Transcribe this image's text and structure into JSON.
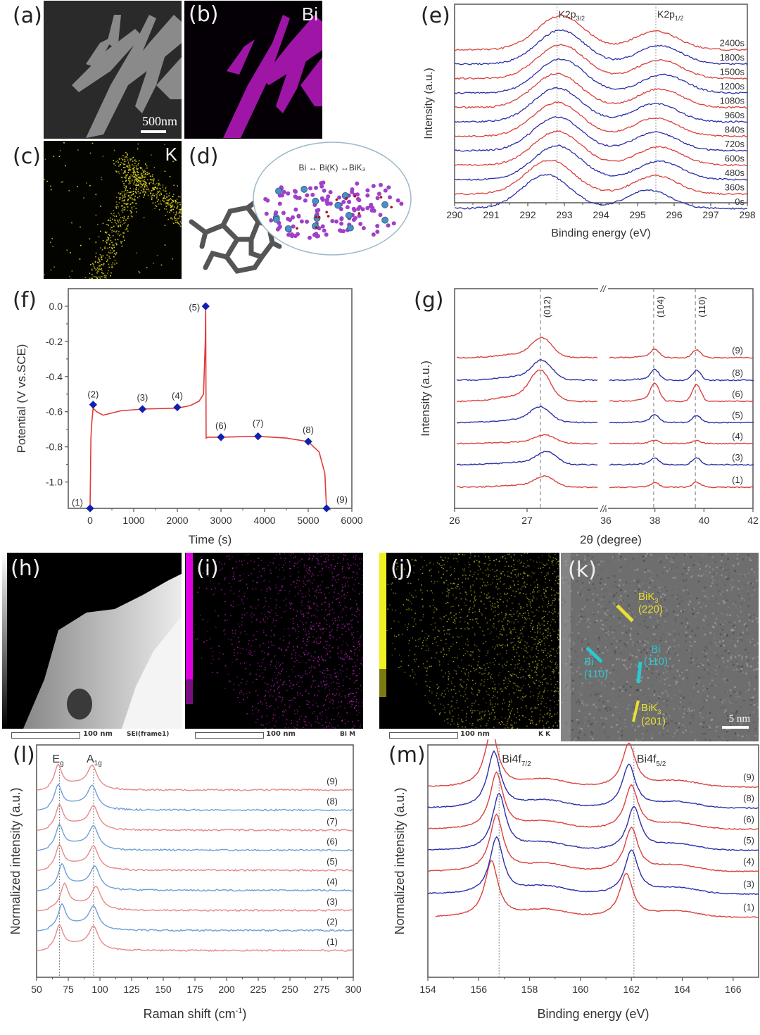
{
  "panels": {
    "a": {
      "label": "(a)",
      "scale_bar": "500nm"
    },
    "b": {
      "label": "(b)",
      "element": "Bi"
    },
    "c": {
      "label": "(c)",
      "element": "K"
    },
    "d": {
      "label": "(d)",
      "scheme": "Bi ↔ Bi(K) ↔BiK₃"
    },
    "e": {
      "label": "(e)"
    },
    "f": {
      "label": "(f)"
    },
    "g": {
      "label": "(g)"
    },
    "h": {
      "label": "(h)",
      "scale_text": "100 nm",
      "caption": "SEI(frame1)"
    },
    "i": {
      "label": "(i)",
      "scale_text": "100 nm",
      "caption": "Bi M"
    },
    "j": {
      "label": "(j)",
      "scale_text": "100 nm",
      "caption": "K K"
    },
    "k": {
      "label": "(k)",
      "scale_bar": "5 nm",
      "annotations": {
        "bik3_220_a": "BiK",
        "bik3_220_sub": "3",
        "bik3_220_b": "(220)",
        "bi_110_left_a": "Bi",
        "bi_110_left_b": "(110)",
        "bi_110_right_a": "Bi",
        "bi_110_right_b": "(110)",
        "bik3_201_a": "BiK",
        "bik3_201_sub": "3",
        "bik3_201_b": "(201)"
      }
    },
    "l": {
      "label": "(l)"
    },
    "m": {
      "label": "(m)"
    }
  },
  "colors": {
    "red": "#d9413f",
    "blue": "#2b2fa8",
    "light_red": "#e8888a",
    "light_blue": "#6f9fd8",
    "magenta": "#d020d0",
    "yellow": "#e8e020",
    "cyan": "#27c4c8",
    "marker": "#1020b0"
  },
  "chart_data": [
    {
      "id": "e",
      "type": "line",
      "title": "",
      "xlabel": "Binding energy (eV)",
      "ylabel": "Intensity (a.u.)",
      "xlim": [
        290,
        298
      ],
      "xticks": [
        290,
        291,
        292,
        293,
        294,
        295,
        296,
        297,
        298
      ],
      "reference_lines": [
        {
          "x": 292.8,
          "label": "K2p",
          "sub": "3/2"
        },
        {
          "x": 295.5,
          "label": "K2p",
          "sub": "1/2"
        }
      ],
      "series": [
        {
          "name": "0s",
          "color": "blue",
          "peak1": 292.5,
          "peak2": 295.3
        },
        {
          "name": "360s",
          "color": "red",
          "peak1": 292.6,
          "peak2": 295.5
        },
        {
          "name": "480s",
          "color": "blue",
          "peak1": 292.8,
          "peak2": 295.6
        },
        {
          "name": "600s",
          "color": "red",
          "peak1": 292.8,
          "peak2": 295.6
        },
        {
          "name": "720s",
          "color": "blue",
          "peak1": 292.8,
          "peak2": 295.5
        },
        {
          "name": "840s",
          "color": "red",
          "peak1": 292.8,
          "peak2": 295.5
        },
        {
          "name": "960s",
          "color": "blue",
          "peak1": 292.8,
          "peak2": 295.5
        },
        {
          "name": "1080s",
          "color": "red",
          "peak1": 292.8,
          "peak2": 295.6
        },
        {
          "name": "1200s",
          "color": "blue",
          "peak1": 292.9,
          "peak2": 295.7
        },
        {
          "name": "1500s",
          "color": "red",
          "peak1": 292.9,
          "peak2": 295.6
        },
        {
          "name": "1800s",
          "color": "blue",
          "peak1": 292.9,
          "peak2": 295.6
        },
        {
          "name": "2400s",
          "color": "red",
          "peak1": 292.9,
          "peak2": 295.5
        }
      ]
    },
    {
      "id": "f",
      "type": "line",
      "xlabel": "Time (s)",
      "ylabel": "Potential (V vs.SCE)",
      "xlim": [
        -500,
        6000
      ],
      "ylim": [
        -1.15,
        0.1
      ],
      "xticks": [
        0,
        1000,
        2000,
        3000,
        4000,
        5000,
        6000
      ],
      "yticks": [
        0.0,
        -0.2,
        -0.4,
        -0.6,
        -0.8,
        -1.0
      ],
      "ytick_labels": [
        "0.0",
        "-0.2",
        "-0.4",
        "-0.6",
        "-0.8",
        "-1.0"
      ],
      "curve": [
        [
          0,
          -1.15
        ],
        [
          20,
          -0.75
        ],
        [
          40,
          -0.66
        ],
        [
          70,
          -0.58
        ],
        [
          150,
          -0.6
        ],
        [
          300,
          -0.62
        ],
        [
          700,
          -0.595
        ],
        [
          1200,
          -0.585
        ],
        [
          2000,
          -0.58
        ],
        [
          2300,
          -0.565
        ],
        [
          2500,
          -0.54
        ],
        [
          2600,
          -0.5
        ],
        [
          2640,
          -0.2
        ],
        [
          2650,
          0.0
        ],
        [
          2660,
          -0.75
        ],
        [
          2700,
          -0.745
        ],
        [
          3000,
          -0.745
        ],
        [
          3850,
          -0.74
        ],
        [
          4500,
          -0.75
        ],
        [
          5000,
          -0.77
        ],
        [
          5250,
          -0.83
        ],
        [
          5380,
          -0.95
        ],
        [
          5420,
          -1.15
        ]
      ],
      "points": [
        {
          "label": "(1)",
          "x": 0,
          "y": -1.15
        },
        {
          "label": "(2)",
          "x": 70,
          "y": -0.56
        },
        {
          "label": "(3)",
          "x": 1200,
          "y": -0.585
        },
        {
          "label": "(4)",
          "x": 2000,
          "y": -0.575
        },
        {
          "label": "(5)",
          "x": 2650,
          "y": 0.0
        },
        {
          "label": "(6)",
          "x": 3000,
          "y": -0.745
        },
        {
          "label": "(7)",
          "x": 3850,
          "y": -0.74
        },
        {
          "label": "(8)",
          "x": 5000,
          "y": -0.77
        },
        {
          "label": "(9)",
          "x": 5420,
          "y": -1.15
        }
      ]
    },
    {
      "id": "g",
      "type": "line",
      "xlabel": "2θ (degree)",
      "ylabel": "Intensity (a.u.)",
      "xtick_labels": [
        "26",
        "27",
        "36",
        "38",
        "40",
        "42"
      ],
      "segments": [
        {
          "xlim": [
            26,
            28.2
          ]
        },
        {
          "xlim": [
            36,
            42
          ]
        }
      ],
      "axis_break": "//",
      "reference_lines": [
        {
          "x": 27.17,
          "label": "(012)"
        },
        {
          "x": 37.95,
          "label": "(104)"
        },
        {
          "x": 39.65,
          "label": "(110)"
        }
      ],
      "series": [
        {
          "name": "(1)",
          "color": "red",
          "peak012": 27.25,
          "h": 0.5,
          "h104": 0.2,
          "h110": 0.25
        },
        {
          "name": "(3)",
          "color": "blue",
          "peak012": 27.28,
          "h": 0.6,
          "h104": 0.3,
          "h110": 0.35
        },
        {
          "name": "(4)",
          "color": "red",
          "peak012": 27.25,
          "h": 0.4,
          "h104": 0.15,
          "h110": 0.15
        },
        {
          "name": "(5)",
          "color": "blue",
          "peak012": 27.17,
          "h": 0.7,
          "h104": 0.35,
          "h110": 0.35
        },
        {
          "name": "(6)",
          "color": "red",
          "peak012": 27.17,
          "h": 1.4,
          "h104": 0.85,
          "h110": 0.85
        },
        {
          "name": "(8)",
          "color": "blue",
          "peak012": 27.2,
          "h": 0.9,
          "h104": 0.5,
          "h110": 0.5
        },
        {
          "name": "(9)",
          "color": "red",
          "peak012": 27.2,
          "h": 0.9,
          "h104": 0.4,
          "h110": 0.4
        }
      ]
    },
    {
      "id": "l",
      "type": "line",
      "xlabel": "Raman shift (cm",
      "xlabel_sup": "-1",
      "xlabel_end": ")",
      "ylabel": "Normalized intensity (a.u.)",
      "xlim": [
        50,
        300
      ],
      "xticks": [
        50,
        75,
        100,
        125,
        150,
        175,
        200,
        225,
        250,
        275,
        300
      ],
      "reference_lines": [
        {
          "x": 68,
          "label": "E",
          "sub": "g"
        },
        {
          "x": 95,
          "label": "A",
          "sub": "1g"
        }
      ],
      "series": [
        {
          "name": "(1)",
          "color": "light_red",
          "eg": 68,
          "a1g": 95
        },
        {
          "name": "(2)",
          "color": "light_blue",
          "eg": 70,
          "a1g": 95
        },
        {
          "name": "(3)",
          "color": "light_red",
          "eg": 72,
          "a1g": 97
        },
        {
          "name": "(4)",
          "color": "light_blue",
          "eg": 70,
          "a1g": 96
        },
        {
          "name": "(5)",
          "color": "light_red",
          "eg": 68,
          "a1g": 95
        },
        {
          "name": "(6)",
          "color": "light_blue",
          "eg": 68,
          "a1g": 95
        },
        {
          "name": "(7)",
          "color": "light_red",
          "eg": 68,
          "a1g": 95
        },
        {
          "name": "(8)",
          "color": "light_blue",
          "eg": 67,
          "a1g": 94
        },
        {
          "name": "(9)",
          "color": "light_red",
          "eg": 67,
          "a1g": 94
        }
      ]
    },
    {
      "id": "m",
      "type": "line",
      "xlabel": "Binding energy (eV)",
      "ylabel": "Normalized intensity (a.u.)",
      "xlim": [
        154,
        167
      ],
      "xticks": [
        154,
        156,
        158,
        160,
        162,
        164,
        166
      ],
      "reference_lines": [
        {
          "x": 156.8,
          "label": "Bi4f",
          "sub": "7/2"
        },
        {
          "x": 162.1,
          "label": "Bi4f",
          "sub": "5/2"
        }
      ],
      "series": [
        {
          "name": "(1)",
          "color": "red",
          "p1": 156.5,
          "p2": 161.8
        },
        {
          "name": "(3)",
          "color": "blue",
          "p1": 156.7,
          "p2": 162.0
        },
        {
          "name": "(4)",
          "color": "red",
          "p1": 156.7,
          "p2": 162.0
        },
        {
          "name": "(5)",
          "color": "blue",
          "p1": 156.8,
          "p2": 162.1
        },
        {
          "name": "(6)",
          "color": "red",
          "p1": 156.7,
          "p2": 162.0
        },
        {
          "name": "(8)",
          "color": "blue",
          "p1": 156.6,
          "p2": 161.9
        },
        {
          "name": "(9)",
          "color": "red",
          "p1": 156.5,
          "p2": 161.9
        }
      ]
    }
  ]
}
